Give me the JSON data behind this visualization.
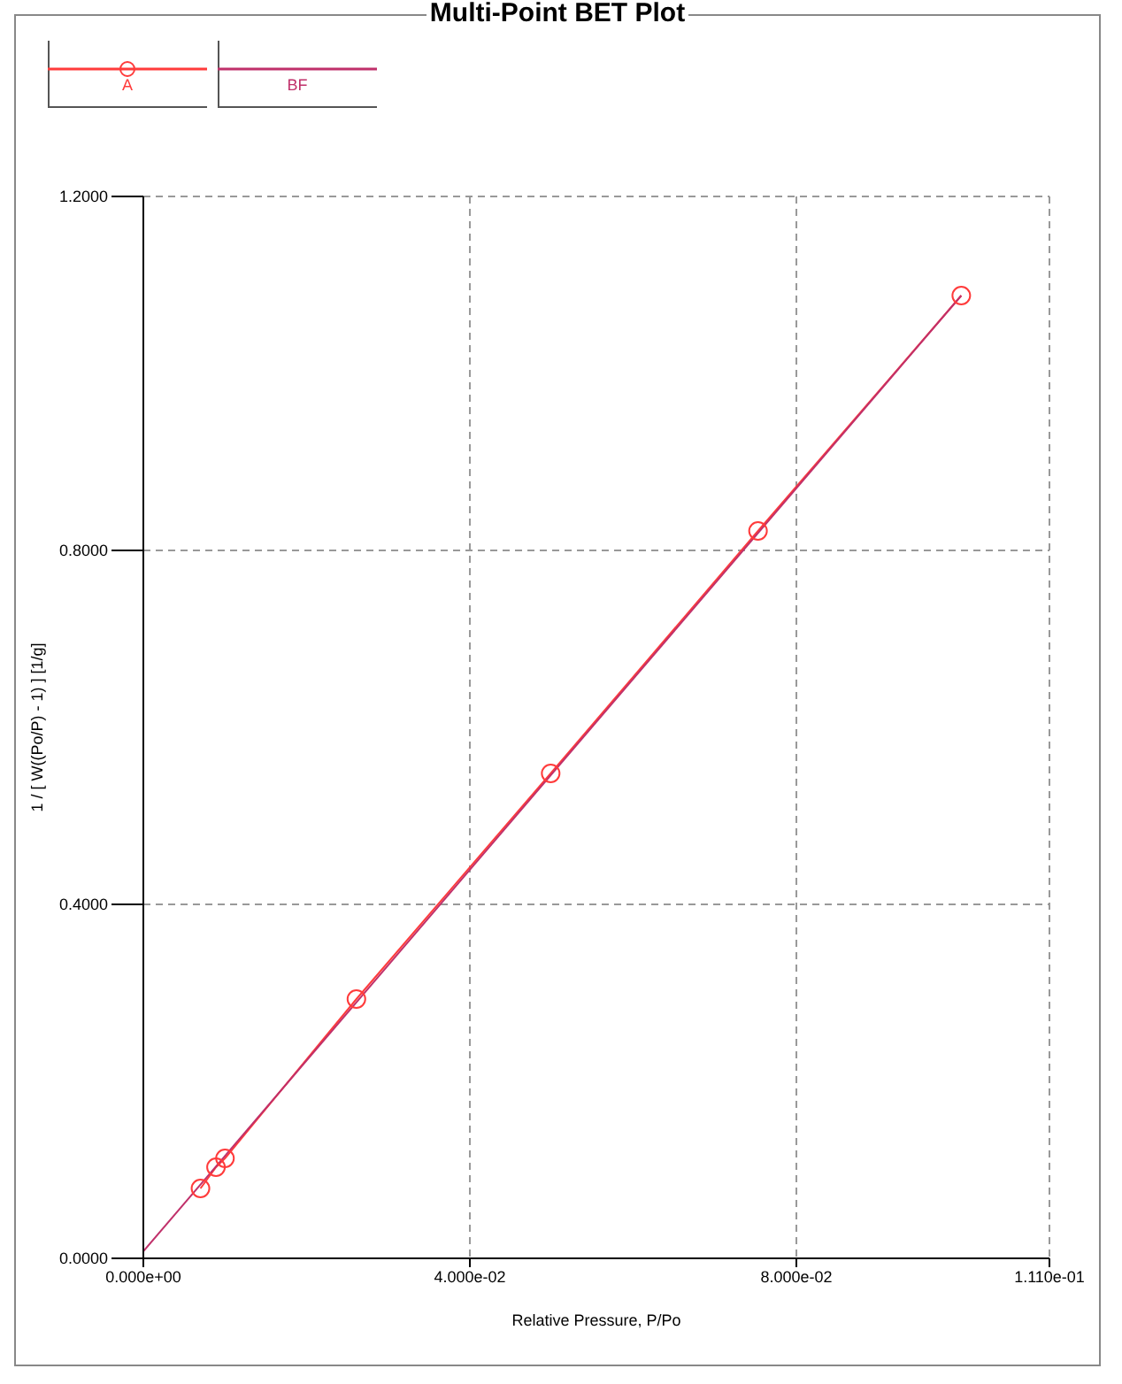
{
  "chart_data": {
    "type": "line",
    "title": "Multi-Point BET Plot",
    "xlabel": "Relative Pressure, P/Po",
    "ylabel": "1 / [ W((Po/P) - 1) ] [1/g]",
    "series": [
      {
        "name": "A",
        "color": "#ff3b3b",
        "marker": "circle",
        "x": [
          0.007,
          0.0089,
          0.01,
          0.0261,
          0.0499,
          0.0753,
          0.1002
        ],
        "values": [
          0.079,
          0.103,
          0.113,
          0.293,
          0.548,
          0.822,
          1.088
        ]
      },
      {
        "name": "BF",
        "color": "#c0306a",
        "marker": "none",
        "x": [
          0,
          0.1002
        ],
        "values": [
          0.008,
          1.088
        ]
      }
    ],
    "xlim": [
      0,
      0.111
    ],
    "xticks": [
      {
        "value": 0,
        "label": "0.000e+00"
      },
      {
        "value": 0.04,
        "label": "4.000e-02"
      },
      {
        "value": 0.08,
        "label": "8.000e-02"
      },
      {
        "value": 0.111,
        "label": "1.110e-01"
      }
    ],
    "ylim": [
      0,
      1.2
    ],
    "yticks": [
      {
        "value": 0,
        "label": "0.0000"
      },
      {
        "value": 0.4,
        "label": "0.4000"
      },
      {
        "value": 0.8,
        "label": "0.8000"
      },
      {
        "value": 1.2,
        "label": "1.2000"
      }
    ],
    "grid": true,
    "legend": "top left",
    "line_style": "solid"
  }
}
